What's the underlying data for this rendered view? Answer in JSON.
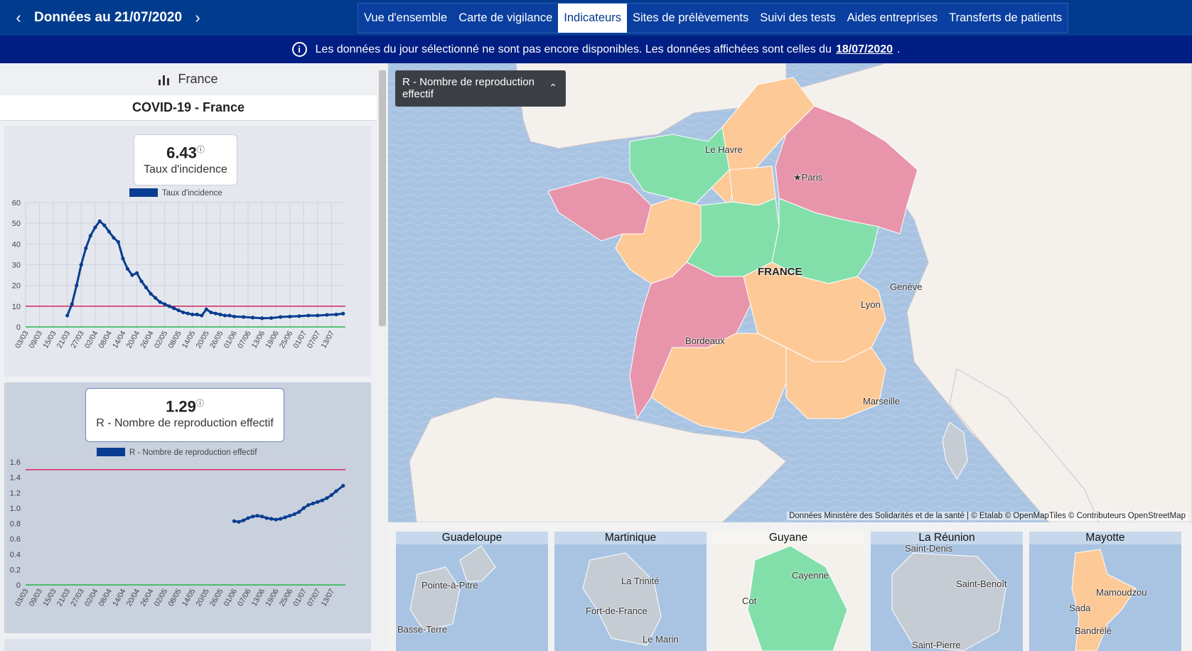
{
  "header": {
    "prev_arrow": "‹",
    "next_arrow": "›",
    "date_label": "Données au 21/07/2020",
    "tabs": [
      {
        "label": "Vue d'ensemble",
        "active": false
      },
      {
        "label": "Carte de vigilance",
        "active": false
      },
      {
        "label": "Indicateurs",
        "active": true
      },
      {
        "label": "Sites de prélèvements",
        "active": false
      },
      {
        "label": "Suivi des tests",
        "active": false
      },
      {
        "label": "Aides entreprises",
        "active": false
      },
      {
        "label": "Transferts de patients",
        "active": false
      }
    ]
  },
  "notice": {
    "text": "Les données du jour sélectionné ne sont pas encore disponibles. Les données affichées sont celles du",
    "date": "18/07/2020",
    "suffix": "."
  },
  "sidebar": {
    "region_label": "France",
    "title": "COVID-19 - France"
  },
  "indicators": [
    {
      "value": "6.43",
      "label": "Taux d'incidence",
      "legend": "Taux d'incidence"
    },
    {
      "value": "1.29",
      "label": "R - Nombre de reproduction effectif",
      "legend": "R - Nombre de reproduction effectif"
    }
  ],
  "chart_data": [
    {
      "type": "line",
      "legend": [
        "Taux d'incidence"
      ],
      "x_ticks": [
        "03/03",
        "09/03",
        "15/03",
        "21/03",
        "27/03",
        "02/04",
        "08/04",
        "14/04",
        "20/04",
        "26/04",
        "02/05",
        "08/05",
        "14/05",
        "20/05",
        "26/05",
        "01/06",
        "07/06",
        "13/06",
        "19/06",
        "25/06",
        "01/07",
        "07/07",
        "13/07"
      ],
      "ylim": [
        0,
        60
      ],
      "y_ticks": [
        0,
        10,
        20,
        30,
        40,
        50,
        60
      ],
      "reference_lines": [
        {
          "value": 10,
          "color": "#d6336c"
        },
        {
          "value": 0,
          "color": "#2bb24c"
        }
      ],
      "series": [
        {
          "name": "Taux d'incidence",
          "color": "#0a3d91",
          "x": [
            "21/03",
            "23/03",
            "25/03",
            "27/03",
            "29/03",
            "31/03",
            "02/04",
            "04/04",
            "06/04",
            "08/04",
            "10/04",
            "12/04",
            "14/04",
            "16/04",
            "18/04",
            "20/04",
            "22/04",
            "24/04",
            "26/04",
            "28/04",
            "30/04",
            "02/05",
            "04/05",
            "06/05",
            "08/05",
            "10/05",
            "12/05",
            "14/05",
            "16/05",
            "18/05",
            "20/05",
            "22/05",
            "24/05",
            "26/05",
            "28/05",
            "30/05",
            "01/06",
            "05/06",
            "09/06",
            "13/06",
            "17/06",
            "21/06",
            "25/06",
            "29/06",
            "03/07",
            "07/07",
            "11/07",
            "15/07",
            "18/07"
          ],
          "values": [
            5.5,
            11,
            20,
            30,
            38,
            44,
            48,
            51,
            49,
            46,
            43,
            41,
            33,
            28,
            25,
            26,
            22,
            19,
            16,
            14,
            12,
            11,
            10,
            9,
            8,
            7,
            6.5,
            6,
            6,
            5.5,
            8.5,
            7,
            6.5,
            6,
            5.5,
            5.5,
            5,
            4.8,
            4.5,
            4.2,
            4.3,
            4.8,
            5,
            5.2,
            5.5,
            5.5,
            5.8,
            6,
            6.43
          ]
        }
      ]
    },
    {
      "type": "line",
      "legend": [
        "R - Nombre de reproduction effectif"
      ],
      "x_ticks": [
        "03/03",
        "09/03",
        "15/03",
        "21/03",
        "27/03",
        "02/04",
        "08/04",
        "14/04",
        "20/04",
        "26/04",
        "02/05",
        "08/05",
        "14/05",
        "20/05",
        "26/05",
        "01/06",
        "07/06",
        "13/06",
        "19/06",
        "25/06",
        "01/07",
        "07/07",
        "13/07"
      ],
      "ylim": [
        0,
        1.6
      ],
      "y_ticks": [
        0,
        0.2,
        0.4,
        0.6,
        0.8,
        1.0,
        1.2,
        1.4,
        1.6
      ],
      "y_tick_labels": [
        "0",
        "0.2",
        "0.4",
        "0.6",
        "0.8",
        "1.0",
        "1.2",
        "1.4",
        "1.6"
      ],
      "reference_lines": [
        {
          "value": 1.5,
          "color": "#d6336c"
        },
        {
          "value": 0,
          "color": "#2bb24c"
        }
      ],
      "series": [
        {
          "name": "R - Nombre de reproduction effectif",
          "color": "#0a3d91",
          "x": [
            "01/06",
            "03/06",
            "05/06",
            "07/06",
            "09/06",
            "11/06",
            "13/06",
            "15/06",
            "17/06",
            "19/06",
            "21/06",
            "23/06",
            "25/06",
            "27/06",
            "29/06",
            "01/07",
            "03/07",
            "05/07",
            "07/07",
            "09/07",
            "11/07",
            "13/07",
            "15/07",
            "18/07"
          ],
          "values": [
            0.83,
            0.82,
            0.84,
            0.87,
            0.89,
            0.9,
            0.89,
            0.87,
            0.86,
            0.85,
            0.86,
            0.88,
            0.9,
            0.92,
            0.95,
            1.0,
            1.04,
            1.06,
            1.08,
            1.1,
            1.13,
            1.17,
            1.22,
            1.29
          ]
        }
      ]
    }
  ],
  "map": {
    "selector_label": "R - Nombre de reproduction effectif",
    "selector_chevron": "⌃",
    "labels": {
      "le_havre": "Le Havre",
      "paris": "Paris",
      "france": "FRANCE",
      "geneve": "Genève",
      "lyon": "Lyon",
      "bordeaux": "Bordeaux",
      "marseille": "Marseille"
    },
    "colors": {
      "green": "#83dfaa",
      "orange": "#fdc997",
      "pink": "#e895ab",
      "sea": "#a9c4e2",
      "land": "#f4f1ed"
    },
    "attribution": "Données Ministère des Solidarités et de la santé | © Etalab © OpenMapTiles © Contributeurs OpenStreetMap"
  },
  "overseas": [
    {
      "title": "Guadeloupe",
      "labels": [
        "Pointe-à-Pitre",
        "Basse-Terre"
      ]
    },
    {
      "title": "Martinique",
      "labels": [
        "La Trinité",
        "Fort-de-France",
        "Le Marin"
      ]
    },
    {
      "title": "Guyane",
      "labels": [
        "Cayenne",
        "Cot"
      ]
    },
    {
      "title": "La Réunion",
      "labels": [
        "Saint-Denis",
        "Saint-Benoît",
        "Saint-Pierre"
      ]
    },
    {
      "title": "Mayotte",
      "labels": [
        "Mamoudzou",
        "Sada",
        "Bandrélé"
      ]
    }
  ]
}
